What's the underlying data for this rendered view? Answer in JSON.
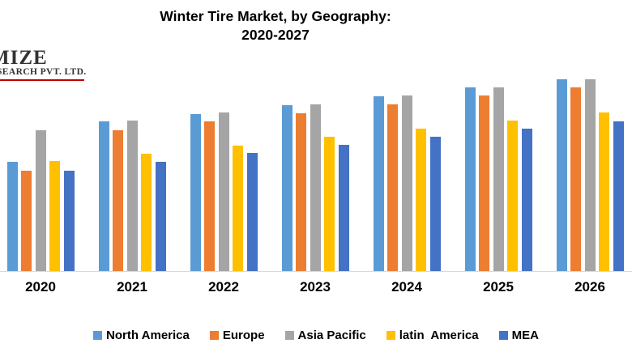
{
  "logo": {
    "line1": "MIZE",
    "line2": "SEARCH PVT. LTD.",
    "underline_color": "#C00000"
  },
  "title": {
    "line1": "Winter Tire Market, by Geography:",
    "line2": "2020-2027"
  },
  "colors": {
    "background": "#FFFFFF",
    "axis_line": "#D9D9D9",
    "text": "#000000"
  },
  "chart_data": {
    "type": "bar",
    "title": "Winter Tire Market, by Geography: 2020-2027",
    "categories": [
      "2020",
      "2021",
      "2022",
      "2023",
      "2024",
      "2025",
      "2026"
    ],
    "series": [
      {
        "name": "North America",
        "color": "#5B9BD5",
        "values": [
          135,
          185,
          194,
          205,
          216,
          227,
          237
        ]
      },
      {
        "name": "Europe",
        "color": "#ED7D31",
        "values": [
          124,
          174,
          185,
          195,
          206,
          217,
          227
        ]
      },
      {
        "name": "Asia Pacific",
        "color": "#A5A5A5",
        "values": [
          174,
          186,
          196,
          206,
          217,
          227,
          237
        ]
      },
      {
        "name": "latin  America",
        "color": "#FFC000",
        "values": [
          136,
          145,
          155,
          166,
          176,
          186,
          196
        ]
      },
      {
        "name": "MEA",
        "color": "#4472C4",
        "values": [
          124,
          135,
          146,
          156,
          166,
          176,
          185
        ]
      }
    ],
    "xlabel": "",
    "ylabel": "",
    "value_unit": "relative bar height (no y-axis, gridlines or data labels shown)",
    "ylim": [
      0,
      240
    ],
    "grid": false,
    "legend_position": "bottom",
    "note": "Years 2020-2026 visible; 2027 group cropped off right edge of image"
  }
}
